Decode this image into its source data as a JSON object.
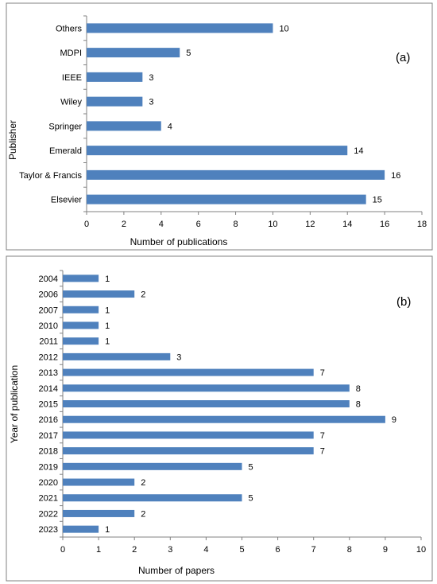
{
  "chart_data": [
    {
      "type": "bar",
      "orientation": "horizontal",
      "panel_label": "(a)",
      "xlabel": "Number of publications",
      "ylabel": "Publisher",
      "xlim": [
        0,
        18
      ],
      "x_ticks": [
        0,
        2,
        4,
        6,
        8,
        10,
        12,
        14,
        16,
        18
      ],
      "categories": [
        "Others",
        "MDPI",
        "IEEE",
        "Wiley",
        "Springer",
        "Emerald",
        "Taylor & Francis",
        "Elsevier"
      ],
      "values": [
        10,
        5,
        3,
        3,
        4,
        14,
        16,
        15
      ],
      "data_labels": [
        "10",
        "5",
        "3",
        "3",
        "4",
        "14",
        "16",
        "15"
      ],
      "bar_color": "#4f81bd",
      "grid": false
    },
    {
      "type": "bar",
      "orientation": "horizontal",
      "panel_label": "(b)",
      "xlabel": "Number of papers",
      "ylabel": "Year of publication",
      "xlim": [
        0,
        10
      ],
      "x_ticks": [
        0,
        1,
        2,
        3,
        4,
        5,
        6,
        7,
        8,
        9,
        10
      ],
      "categories": [
        "2004",
        "2006",
        "2007",
        "2010",
        "2011",
        "2012",
        "2013",
        "2014",
        "2015",
        "2016",
        "2017",
        "2018",
        "2019",
        "2020",
        "2021",
        "2022",
        "2023"
      ],
      "values": [
        1,
        2,
        1,
        1,
        1,
        3,
        7,
        8,
        8,
        9,
        7,
        7,
        5,
        2,
        5,
        2,
        1
      ],
      "data_labels": [
        "1",
        "2",
        "1",
        "1",
        "1",
        "3",
        "7",
        "8",
        "8",
        "9",
        "7",
        "7",
        "5",
        "2",
        "5",
        "2",
        "1"
      ],
      "bar_color": "#4f81bd",
      "grid": false
    }
  ]
}
